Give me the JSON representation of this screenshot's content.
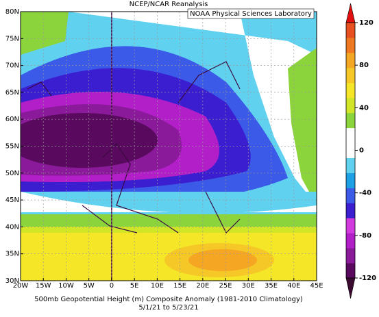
{
  "title": "NCEP/NCAR Reanalysis",
  "subtitle": "NOAA Physical Sciences Laboratory",
  "map": {
    "xlim": [
      -20,
      45
    ],
    "ylim": [
      30,
      80
    ],
    "xticks": [
      {
        "value": -20,
        "label": "20W"
      },
      {
        "value": -15,
        "label": "15W"
      },
      {
        "value": -10,
        "label": "10W"
      },
      {
        "value": -5,
        "label": "5W"
      },
      0,
      {
        "value": 5,
        "label": "5E"
      },
      {
        "value": 10,
        "label": "10E"
      },
      {
        "value": 15,
        "label": "15E"
      },
      {
        "value": 20,
        "label": "20E"
      },
      {
        "value": 25,
        "label": "25E"
      },
      {
        "value": 30,
        "label": "30E"
      },
      {
        "value": 35,
        "label": "35E"
      },
      {
        "value": 40,
        "label": "40E"
      },
      {
        "value": 45,
        "label": "45E"
      }
    ],
    "yticks": [
      {
        "value": 30,
        "label": "30N"
      },
      {
        "value": 35,
        "label": "35N"
      },
      {
        "value": 40,
        "label": "40N"
      },
      {
        "value": 45,
        "label": "45N"
      },
      {
        "value": 50,
        "label": "50N"
      },
      {
        "value": 55,
        "label": "55N"
      },
      {
        "value": 60,
        "label": "60N"
      },
      {
        "value": 65,
        "label": "65N"
      },
      {
        "value": 70,
        "label": "70N"
      },
      {
        "value": 75,
        "label": "75N"
      },
      {
        "value": 80,
        "label": "80N"
      }
    ],
    "grid": true
  },
  "colorbar": {
    "lim": [
      -120,
      120
    ],
    "ticks": [
      120,
      80,
      40,
      0,
      -40,
      -80,
      -120
    ],
    "colors": [
      "#5a0a5e",
      "#8a1a9a",
      "#b21ec8",
      "#d23ae0",
      "#3a1ed0",
      "#3c5ae8",
      "#1ea0e6",
      "#60d2f0",
      "#ffffff",
      "#ffffff",
      "#8cd43c",
      "#d2e628",
      "#f5e628",
      "#f5c828",
      "#f5a623",
      "#f07820",
      "#e85020"
    ],
    "over": "#e01010",
    "under": "#3a0a30"
  },
  "caption": [
    "500mb Geopotential Height (m) Composite Anomaly (1981-2010 Climatology)",
    "5/1/21  to 5/23/21"
  ]
}
